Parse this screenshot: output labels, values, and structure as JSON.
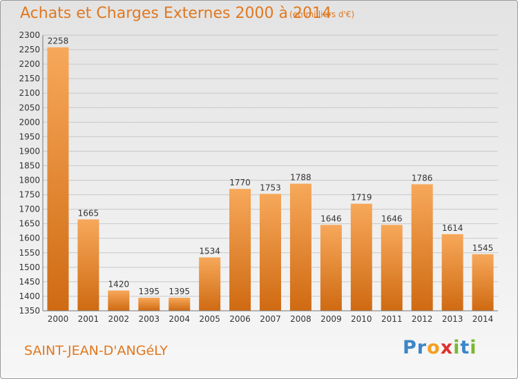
{
  "header": {
    "title": "Achats et Charges Externes 2000 à 2014",
    "subtitle": "(en milliers d'€)"
  },
  "footer": {
    "town": "SAINT-JEAN-D'ANGéLY",
    "logo": {
      "letters": [
        "P",
        "r",
        "o",
        "x",
        "i",
        "t",
        "i"
      ],
      "colors": [
        "#3a86c8",
        "#3a86c8",
        "#f4a020",
        "#e03030",
        "#7ab830",
        "#3a86c8",
        "#7ab830"
      ]
    }
  },
  "colors": {
    "bar_light": "#f7a85a",
    "bar_dark": "#cf6a12",
    "accent_text": "#e07820",
    "grid": "#c8c8c8"
  },
  "chart_data": {
    "type": "bar",
    "title": "Achats et Charges Externes 2000 à 2014",
    "subtitle": "(en milliers d'€)",
    "xlabel": "",
    "ylabel": "",
    "ylim": [
      1350,
      2300
    ],
    "ytick_step": 50,
    "grid": true,
    "categories": [
      "2000",
      "2001",
      "2002",
      "2003",
      "2004",
      "2005",
      "2006",
      "2007",
      "2008",
      "2009",
      "2010",
      "2011",
      "2012",
      "2013",
      "2014"
    ],
    "values": [
      2258,
      1665,
      1420,
      1395,
      1395,
      1534,
      1770,
      1753,
      1788,
      1646,
      1719,
      1646,
      1786,
      1614,
      1545
    ]
  }
}
